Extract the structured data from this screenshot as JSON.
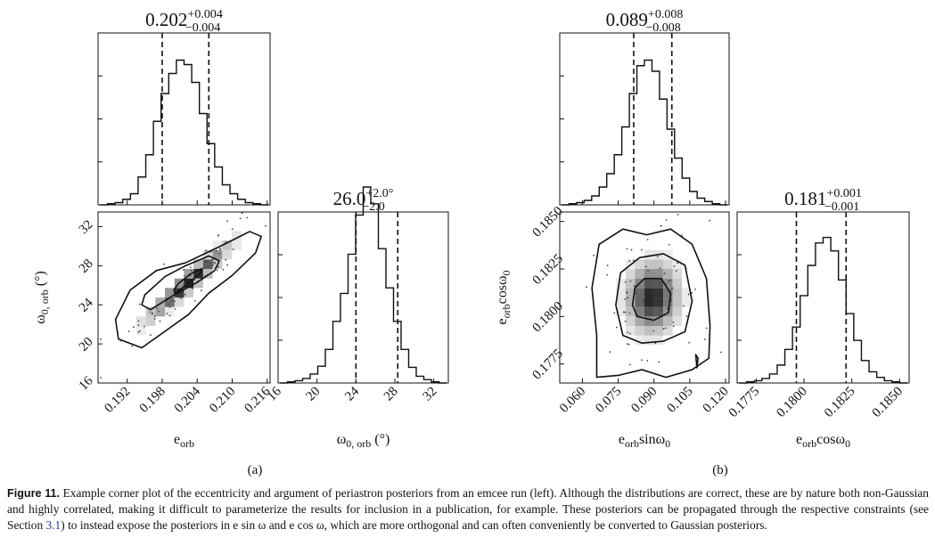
{
  "caption": {
    "label": "Figure 11.",
    "text_before": " Example corner plot of the eccentricity and argument of periastron posteriors from an emcee run (left). Although the distributions are correct, these are by nature both non-Gaussian and highly correlated, making it difficult to parameterize the results for inclusion in a publication, for example. These posteriors can be propagated through the respective constraints (see Section ",
    "ref": "3.1",
    "text_after": ") to instead expose the posteriors in e sin ω and e cos ω, which are more orthogonal and can often conveniently be converted to Gaussian posteriors."
  },
  "chart_data": [
    {
      "type": "corner",
      "panel_label": "(a)",
      "params": [
        {
          "label_main": "e",
          "label_sub": "orb",
          "label_suffix": "",
          "median": "0.202",
          "plus": "+0.004",
          "minus": "−0.004",
          "range": [
            0.187,
            0.2165
          ],
          "ticks": [
            0.192,
            0.198,
            0.204,
            0.21,
            0.216
          ],
          "tick_labels": [
            "0.192",
            "0.198",
            "0.204",
            "0.210",
            "0.216"
          ],
          "quantiles": [
            0.198,
            0.206
          ],
          "hist": [
            0,
            1,
            2,
            5,
            10,
            25,
            45,
            75,
            100,
            118,
            130,
            126,
            110,
            82,
            55,
            34,
            18,
            10,
            5,
            2,
            1,
            0
          ]
        },
        {
          "label_main": "ω",
          "label_sub": "0, orb",
          "label_suffix": " (°)",
          "median": "26.0",
          "plus": "+2.0°",
          "minus": "−2.0",
          "range": [
            16,
            33.5
          ],
          "ticks": [
            16,
            20,
            24,
            28,
            32
          ],
          "tick_labels": [
            "16",
            "20",
            "24",
            "28",
            "32"
          ],
          "quantiles": [
            24.0,
            28.3
          ],
          "hist": [
            0,
            1,
            2,
            4,
            8,
            15,
            30,
            55,
            80,
            115,
            150,
            175,
            160,
            120,
            85,
            55,
            30,
            14,
            6,
            3,
            1,
            0
          ]
        }
      ],
      "hist_ymax": 140,
      "hist2d": {
        "mean": [
          0.2025,
          26.3
        ],
        "sd": [
          0.0042,
          2.3
        ],
        "rho": 0.96
      },
      "contours": [
        {
          "x": [
            0.1945,
            0.1985,
            0.2025,
            0.206,
            0.21,
            0.214,
            0.215,
            0.213,
            0.208,
            0.202,
            0.197,
            0.1925,
            0.19,
            0.1905,
            0.1945
          ],
          "y": [
            19.6,
            21.3,
            23.0,
            25.2,
            27.0,
            29.3,
            31.0,
            31.5,
            30.0,
            28.3,
            27.5,
            25.5,
            22.5,
            20.5,
            19.6
          ]
        },
        {
          "x": [
            0.196,
            0.2,
            0.204,
            0.207,
            0.2078,
            0.206,
            0.202,
            0.1985,
            0.195,
            0.1945,
            0.196
          ],
          "y": [
            23.5,
            25.0,
            26.3,
            27.5,
            28.5,
            29.0,
            28.0,
            26.9,
            25.0,
            24.0,
            23.5
          ]
        },
        {
          "x": [
            0.2003,
            0.2025,
            0.2045,
            0.2048,
            0.203,
            0.2008,
            0.2,
            0.2003
          ],
          "y": [
            25.2,
            26.2,
            27.2,
            27.7,
            27.2,
            26.2,
            25.5,
            25.2
          ]
        }
      ]
    },
    {
      "type": "corner",
      "panel_label": "(b)",
      "params": [
        {
          "label_main": "e",
          "label_sub": "orb",
          "label_suffix": "sinω",
          "label_post_sub": "0",
          "median": "0.089",
          "plus": "+0.008",
          "minus": "−0.008",
          "range": [
            0.0505,
            0.1215
          ],
          "ticks": [
            0.06,
            0.075,
            0.09,
            0.105,
            0.12
          ],
          "tick_labels": [
            "0.060",
            "0.075",
            "0.090",
            "0.105",
            "0.120"
          ],
          "quantiles": [
            0.0815,
            0.0975
          ],
          "hist": [
            0,
            1,
            2,
            4,
            8,
            16,
            28,
            45,
            70,
            100,
            125,
            130,
            120,
            95,
            68,
            42,
            24,
            12,
            6,
            3,
            1,
            0
          ]
        },
        {
          "label_main": "e",
          "label_sub": "orb",
          "label_suffix": "cosω",
          "label_post_sub": "0",
          "median": "0.181",
          "plus": "+0.001",
          "minus": "−0.001",
          "range": [
            0.1765,
            0.1855
          ],
          "ticks": [
            0.1775,
            0.18,
            0.1825,
            0.185
          ],
          "tick_labels": [
            "0.1775",
            "0.1800",
            "0.1825",
            "0.1850"
          ],
          "quantiles": [
            0.1796,
            0.1822
          ],
          "hist": [
            0,
            1,
            2,
            4,
            8,
            16,
            30,
            50,
            78,
            105,
            125,
            130,
            118,
            92,
            62,
            38,
            20,
            10,
            5,
            2,
            1,
            0
          ]
        }
      ],
      "hist_ymax": 140,
      "hist2d": {
        "mean": [
          0.0895,
          0.181
        ],
        "sd": [
          0.0065,
          0.0011
        ],
        "rho": 0.05
      },
      "contours": [
        {
          "x": [
            0.066,
            0.075,
            0.085,
            0.095,
            0.106,
            0.113,
            0.1135,
            0.112,
            0.106,
            0.097,
            0.087,
            0.077,
            0.067,
            0.064,
            0.066,
            0.066
          ],
          "y": [
            0.1768,
            0.1769,
            0.1772,
            0.1768,
            0.1772,
            0.1778,
            0.1795,
            0.182,
            0.1838,
            0.1846,
            0.1843,
            0.1846,
            0.1838,
            0.1815,
            0.179,
            0.1768
          ]
        },
        {
          "x": [
            0.077,
            0.085,
            0.094,
            0.103,
            0.106,
            0.103,
            0.094,
            0.084,
            0.076,
            0.074,
            0.077
          ],
          "y": [
            0.179,
            0.1786,
            0.1787,
            0.1792,
            0.1808,
            0.1827,
            0.1833,
            0.1831,
            0.1823,
            0.1806,
            0.179
          ]
        },
        {
          "x": [
            0.083,
            0.09,
            0.096,
            0.097,
            0.093,
            0.086,
            0.082,
            0.081,
            0.083
          ],
          "y": [
            0.18,
            0.1798,
            0.1802,
            0.1812,
            0.182,
            0.182,
            0.1815,
            0.1806,
            0.18
          ]
        },
        {
          "x": [
            0.1075,
            0.1085,
            0.108,
            0.1075
          ],
          "y": [
            0.178,
            0.1778,
            0.1773,
            0.178
          ]
        }
      ]
    }
  ]
}
